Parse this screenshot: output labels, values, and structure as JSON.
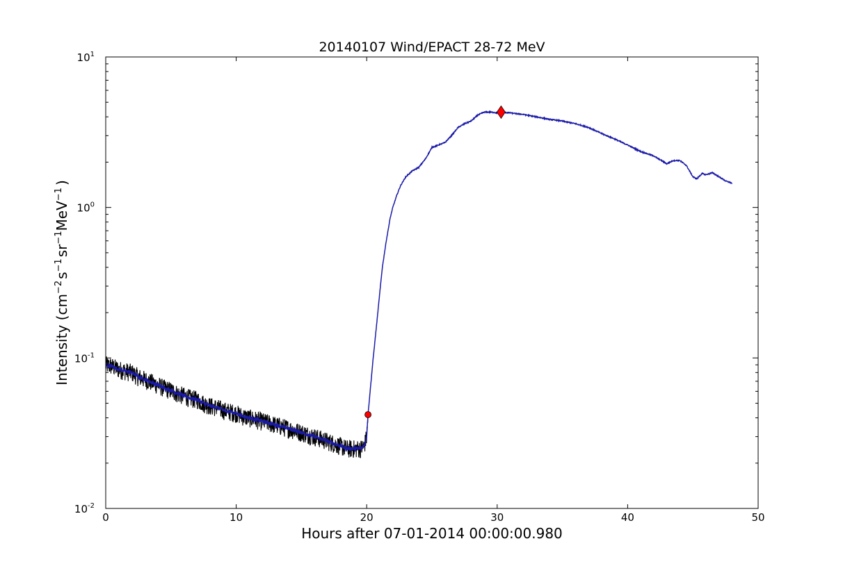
{
  "chart_data": {
    "type": "line",
    "title": "20140107 Wind/EPACT 28-72 MeV",
    "xlabel": "Hours after 07-01-2014 00:00:00.980",
    "ylabel": {
      "prefix": "Intensity (cm",
      "exp1": "−2",
      "mid1": "s",
      "exp2": "−1",
      "mid2": "sr",
      "exp3": "−1",
      "mid3": "MeV",
      "exp4": "−1",
      "suffix": ")"
    },
    "xlim": [
      0,
      50
    ],
    "ylim": [
      0.01,
      10
    ],
    "yscale": "log",
    "grid": false,
    "x_ticks": [
      {
        "value": 0,
        "label": "0"
      },
      {
        "value": 10,
        "label": "10"
      },
      {
        "value": 20,
        "label": "20"
      },
      {
        "value": 30,
        "label": "30"
      },
      {
        "value": 40,
        "label": "40"
      },
      {
        "value": 50,
        "label": "50"
      }
    ],
    "y_ticks": [
      {
        "value": 0.01,
        "base": "10",
        "exp": "-2"
      },
      {
        "value": 0.1,
        "base": "10",
        "exp": "-1"
      },
      {
        "value": 1,
        "base": "10",
        "exp": "0"
      },
      {
        "value": 10,
        "base": "10",
        "exp": "1"
      }
    ],
    "series": [
      {
        "color": "#000000",
        "style": "raw-noisy",
        "points": [
          [
            0.0,
            0.09
          ],
          [
            0.5,
            0.088
          ],
          [
            1.0,
            0.084
          ],
          [
            1.5,
            0.082
          ],
          [
            2.0,
            0.08
          ],
          [
            2.5,
            0.075
          ],
          [
            3.0,
            0.072
          ],
          [
            3.5,
            0.069
          ],
          [
            4.0,
            0.066
          ],
          [
            4.5,
            0.063
          ],
          [
            5.0,
            0.061
          ],
          [
            5.5,
            0.058
          ],
          [
            6.0,
            0.056
          ],
          [
            6.5,
            0.054
          ],
          [
            7.0,
            0.053
          ],
          [
            7.5,
            0.05
          ],
          [
            8.0,
            0.048
          ],
          [
            8.5,
            0.047
          ],
          [
            9.0,
            0.045
          ],
          [
            9.5,
            0.044
          ],
          [
            10.0,
            0.043
          ],
          [
            10.5,
            0.041
          ],
          [
            11.0,
            0.04
          ],
          [
            11.5,
            0.039
          ],
          [
            12.0,
            0.038
          ],
          [
            12.5,
            0.037
          ],
          [
            13.0,
            0.036
          ],
          [
            13.5,
            0.035
          ],
          [
            14.0,
            0.034
          ],
          [
            14.5,
            0.033
          ],
          [
            15.0,
            0.032
          ],
          [
            15.5,
            0.031
          ],
          [
            16.0,
            0.03
          ],
          [
            16.5,
            0.029
          ],
          [
            17.0,
            0.028
          ],
          [
            17.5,
            0.027
          ],
          [
            18.0,
            0.026
          ],
          [
            18.5,
            0.025
          ],
          [
            19.0,
            0.025
          ],
          [
            19.5,
            0.025
          ],
          [
            19.8,
            0.026
          ],
          [
            20.0,
            0.03
          ],
          [
            20.1,
            0.042
          ]
        ]
      },
      {
        "color": "#1a1aa8",
        "style": "smoothed",
        "points": [
          [
            0.0,
            0.09
          ],
          [
            0.5,
            0.088
          ],
          [
            1.0,
            0.084
          ],
          [
            1.5,
            0.082
          ],
          [
            2.0,
            0.08
          ],
          [
            2.5,
            0.075
          ],
          [
            3.0,
            0.072
          ],
          [
            3.5,
            0.069
          ],
          [
            4.0,
            0.066
          ],
          [
            4.5,
            0.063
          ],
          [
            5.0,
            0.061
          ],
          [
            5.5,
            0.058
          ],
          [
            6.0,
            0.056
          ],
          [
            6.5,
            0.054
          ],
          [
            7.0,
            0.053
          ],
          [
            7.5,
            0.05
          ],
          [
            8.0,
            0.048
          ],
          [
            8.5,
            0.047
          ],
          [
            9.0,
            0.045
          ],
          [
            9.5,
            0.044
          ],
          [
            10.0,
            0.043
          ],
          [
            10.5,
            0.041
          ],
          [
            11.0,
            0.04
          ],
          [
            11.5,
            0.039
          ],
          [
            12.0,
            0.038
          ],
          [
            12.5,
            0.037
          ],
          [
            13.0,
            0.036
          ],
          [
            13.5,
            0.035
          ],
          [
            14.0,
            0.034
          ],
          [
            14.5,
            0.033
          ],
          [
            15.0,
            0.032
          ],
          [
            15.5,
            0.031
          ],
          [
            16.0,
            0.03
          ],
          [
            16.5,
            0.029
          ],
          [
            17.0,
            0.028
          ],
          [
            17.5,
            0.027
          ],
          [
            18.0,
            0.026
          ],
          [
            18.5,
            0.025
          ],
          [
            19.0,
            0.025
          ],
          [
            19.5,
            0.025
          ],
          [
            19.8,
            0.026
          ],
          [
            20.0,
            0.03
          ],
          [
            20.1,
            0.042
          ],
          [
            20.3,
            0.065
          ],
          [
            20.5,
            0.1
          ],
          [
            20.8,
            0.18
          ],
          [
            21.0,
            0.27
          ],
          [
            21.2,
            0.4
          ],
          [
            21.5,
            0.6
          ],
          [
            21.8,
            0.85
          ],
          [
            22.0,
            1.0
          ],
          [
            22.3,
            1.2
          ],
          [
            22.6,
            1.4
          ],
          [
            23.0,
            1.6
          ],
          [
            23.5,
            1.75
          ],
          [
            24.0,
            1.85
          ],
          [
            24.5,
            2.1
          ],
          [
            25.0,
            2.5
          ],
          [
            25.5,
            2.6
          ],
          [
            26.0,
            2.7
          ],
          [
            26.5,
            3.0
          ],
          [
            27.0,
            3.4
          ],
          [
            27.5,
            3.6
          ],
          [
            28.0,
            3.75
          ],
          [
            28.5,
            4.1
          ],
          [
            29.0,
            4.3
          ],
          [
            29.5,
            4.3
          ],
          [
            30.0,
            4.25
          ],
          [
            30.3,
            4.3
          ],
          [
            31.0,
            4.25
          ],
          [
            32.0,
            4.15
          ],
          [
            33.0,
            4.0
          ],
          [
            34.0,
            3.85
          ],
          [
            35.0,
            3.75
          ],
          [
            36.0,
            3.6
          ],
          [
            37.0,
            3.4
          ],
          [
            38.0,
            3.1
          ],
          [
            39.0,
            2.85
          ],
          [
            40.0,
            2.6
          ],
          [
            41.0,
            2.35
          ],
          [
            42.0,
            2.2
          ],
          [
            43.0,
            1.95
          ],
          [
            43.5,
            2.05
          ],
          [
            44.0,
            2.05
          ],
          [
            44.5,
            1.9
          ],
          [
            45.0,
            1.6
          ],
          [
            45.3,
            1.55
          ],
          [
            45.7,
            1.68
          ],
          [
            46.0,
            1.65
          ],
          [
            46.5,
            1.7
          ],
          [
            47.0,
            1.6
          ],
          [
            47.5,
            1.5
          ],
          [
            48.0,
            1.45
          ]
        ]
      }
    ],
    "markers": [
      {
        "shape": "circle",
        "color": "#ff0000",
        "x": 20.1,
        "y": 0.042
      },
      {
        "shape": "diamond",
        "color": "#ff0000",
        "x": 30.3,
        "y": 4.3
      }
    ]
  }
}
